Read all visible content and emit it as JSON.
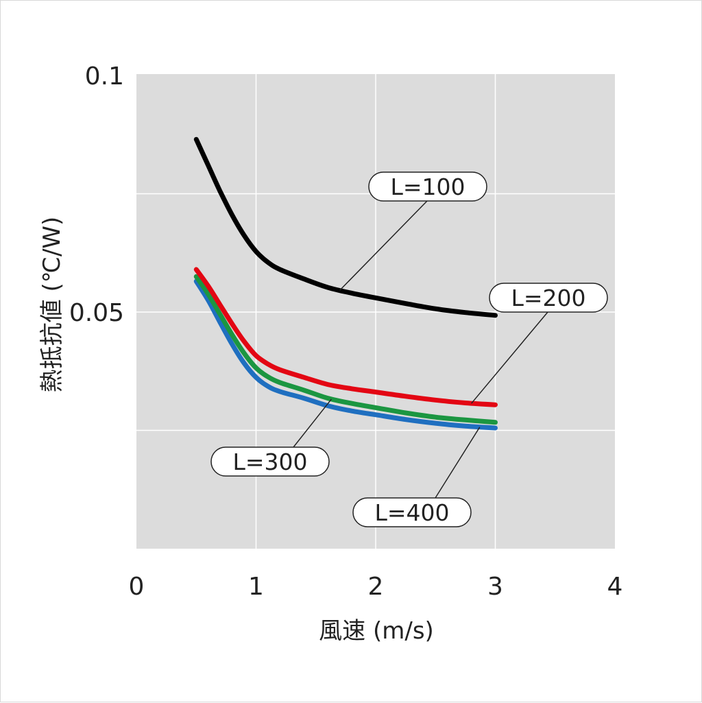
{
  "chart_data": {
    "type": "line",
    "xlabel": "風速 (m/s)",
    "ylabel": "熱抵抗値 (℃/W)",
    "xlim": [
      0,
      4
    ],
    "ylim": [
      0.0,
      0.1
    ],
    "x_ticks": [
      "0",
      "1",
      "2",
      "3",
      "4"
    ],
    "y_ticks": [
      "0.05",
      "0.1"
    ],
    "grid": true,
    "series": [
      {
        "name": "L=100",
        "color": "#000000",
        "x": [
          0.5,
          0.6,
          0.7,
          0.8,
          0.9,
          1.0,
          1.1,
          1.2,
          1.4,
          1.6,
          1.8,
          2.0,
          2.25,
          2.5,
          2.75,
          3.0
        ],
        "y": [
          0.0865,
          0.081,
          0.0755,
          0.0705,
          0.0662,
          0.0628,
          0.0605,
          0.059,
          0.057,
          0.0552,
          0.054,
          0.053,
          0.0518,
          0.0507,
          0.0499,
          0.0493
        ]
      },
      {
        "name": "L=200",
        "color": "#e30613",
        "x": [
          0.5,
          0.6,
          0.7,
          0.8,
          0.9,
          1.0,
          1.1,
          1.2,
          1.4,
          1.6,
          1.8,
          2.0,
          2.25,
          2.5,
          2.75,
          3.0
        ],
        "y": [
          0.059,
          0.0555,
          0.0515,
          0.0475,
          0.0438,
          0.0408,
          0.039,
          0.0378,
          0.0362,
          0.0347,
          0.0338,
          0.0331,
          0.0322,
          0.0314,
          0.0308,
          0.0304
        ]
      },
      {
        "name": "L=300",
        "color": "#1b9641",
        "x": [
          0.5,
          0.6,
          0.7,
          0.8,
          0.9,
          1.0,
          1.1,
          1.2,
          1.4,
          1.6,
          1.8,
          2.0,
          2.25,
          2.5,
          2.75,
          3.0
        ],
        "y": [
          0.0575,
          0.0538,
          0.0495,
          0.0452,
          0.0413,
          0.0382,
          0.0363,
          0.0351,
          0.0335,
          0.0318,
          0.0307,
          0.0298,
          0.0287,
          0.0278,
          0.0272,
          0.0267
        ]
      },
      {
        "name": "L=400",
        "color": "#1f6fc0",
        "x": [
          0.5,
          0.6,
          0.7,
          0.8,
          0.9,
          1.0,
          1.1,
          1.2,
          1.4,
          1.6,
          1.8,
          2.0,
          2.25,
          2.5,
          2.75,
          3.0
        ],
        "y": [
          0.0565,
          0.0525,
          0.0478,
          0.0432,
          0.0392,
          0.0362,
          0.0343,
          0.0332,
          0.0318,
          0.0302,
          0.0291,
          0.0283,
          0.0273,
          0.0265,
          0.0259,
          0.0255
        ]
      }
    ],
    "annotations": [
      {
        "label": "L=100",
        "series": 0,
        "point": [
          1.7,
          0.0546
        ]
      },
      {
        "label": "L=200",
        "series": 1,
        "point": [
          2.8,
          0.0307
        ]
      },
      {
        "label": "L=300",
        "series": 2,
        "point": [
          1.63,
          0.0316
        ]
      },
      {
        "label": "L=400",
        "series": 3,
        "point": [
          2.87,
          0.0257
        ]
      }
    ]
  }
}
